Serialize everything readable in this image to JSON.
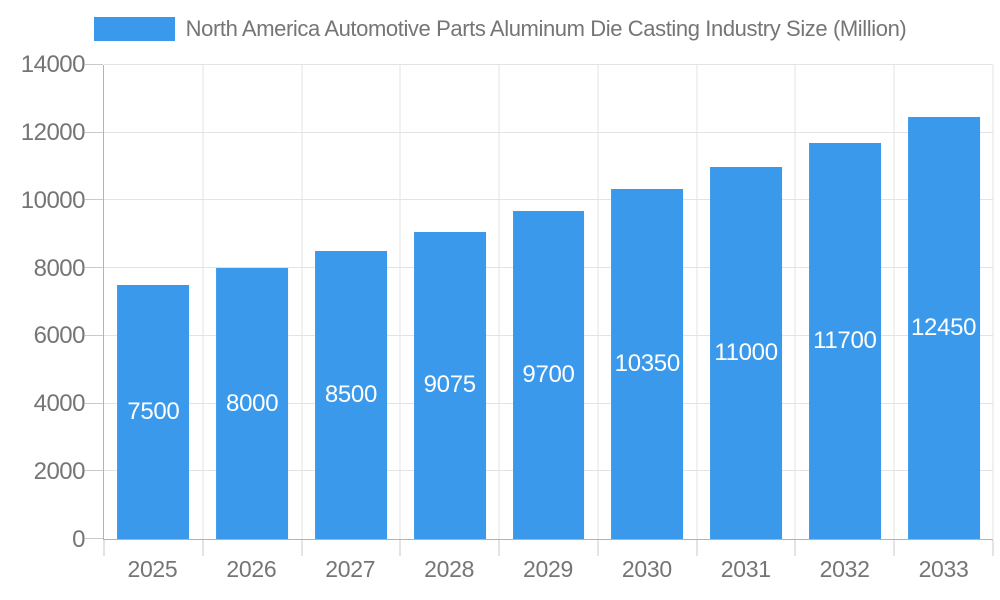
{
  "chart_data": {
    "type": "bar",
    "title": "North America Automotive Parts Aluminum Die Casting Industry Size (Million)",
    "categories": [
      "2025",
      "2026",
      "2027",
      "2028",
      "2029",
      "2030",
      "2031",
      "2032",
      "2033"
    ],
    "values": [
      7500,
      8000,
      8500,
      9075,
      9700,
      10350,
      11000,
      11700,
      12450
    ],
    "xlabel": "",
    "ylabel": "",
    "ylim": [
      0,
      14000
    ],
    "yticks": [
      0,
      2000,
      4000,
      6000,
      8000,
      10000,
      12000,
      14000
    ],
    "grid": true,
    "legend_position": "top",
    "bar_color": "#3b99ec",
    "bar_label_color": "#ffffff",
    "axis_text_color": "#757575",
    "gridline_color": "#e3e3e3",
    "axis_line_color": "#b3b3b3"
  }
}
